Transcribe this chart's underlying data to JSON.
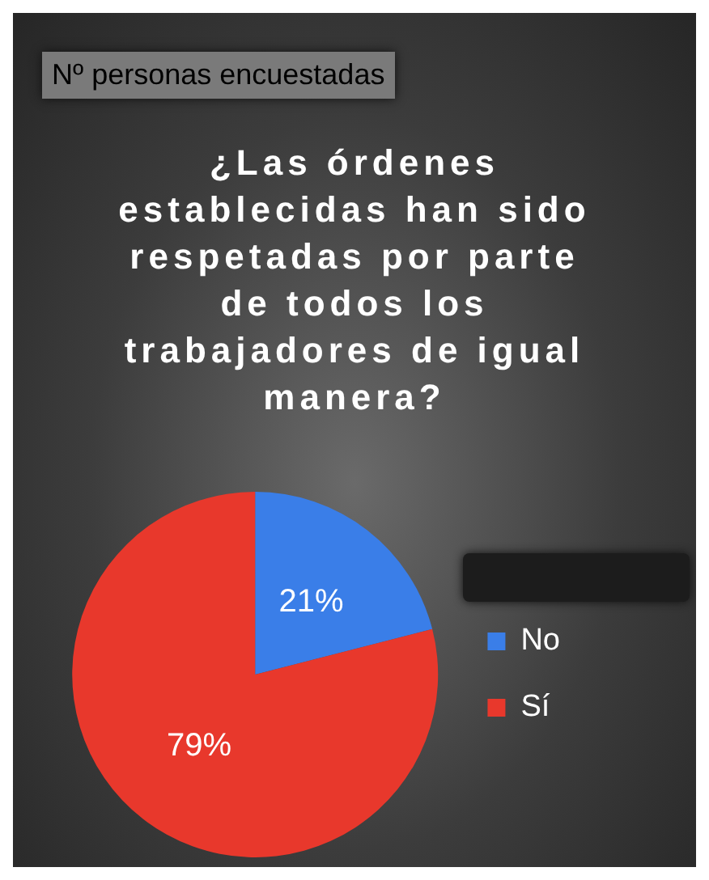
{
  "chart_data": {
    "type": "pie",
    "title": "¿Las órdenes establecidas han sido respetadas por parte de todos los trabajadores de igual manera?",
    "annotations": [
      "Nº personas encuestadas"
    ],
    "categories": [
      "No",
      "Sí"
    ],
    "values": [
      21,
      79
    ],
    "colors": [
      "#3a7ee8",
      "#e8382c"
    ],
    "value_labels": [
      "21%",
      "79%"
    ],
    "legend": "right"
  }
}
